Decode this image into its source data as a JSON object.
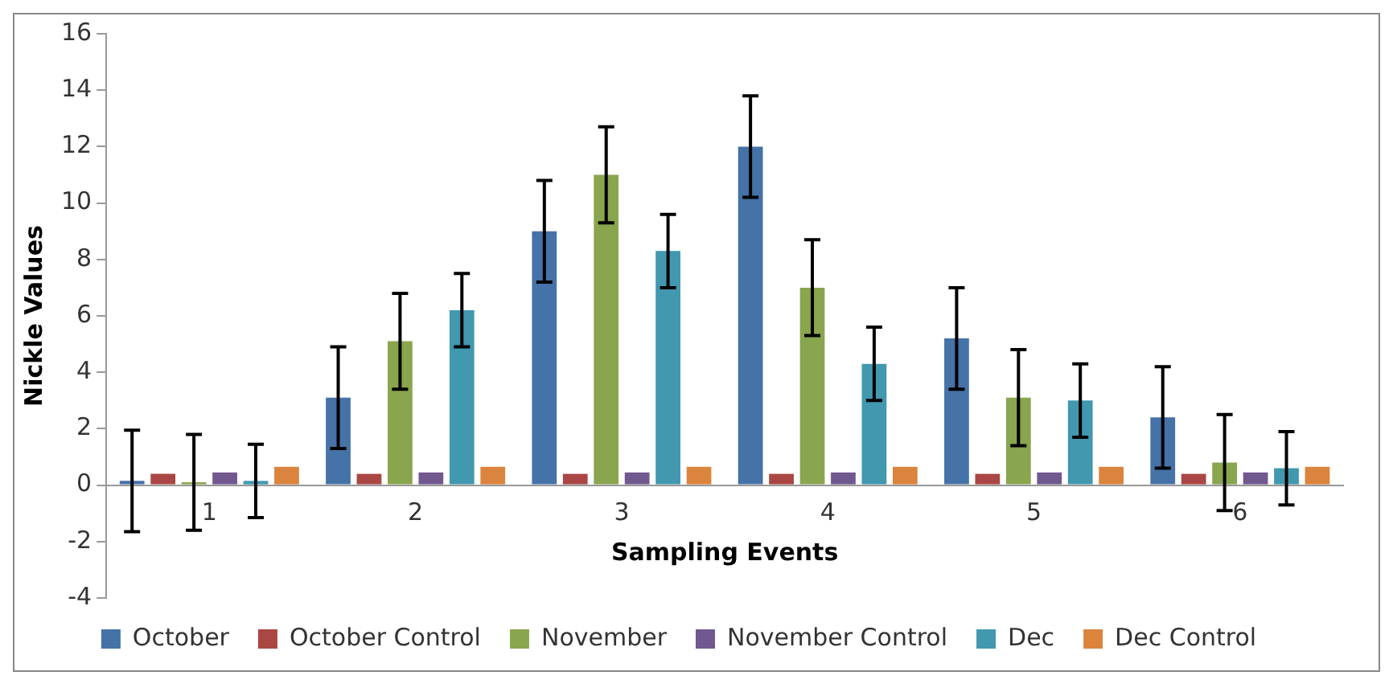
{
  "chart_data": {
    "type": "bar",
    "xlabel": "Sampling Events",
    "ylabel": "Nickle Values",
    "categories": [
      "1",
      "2",
      "3",
      "4",
      "5",
      "6"
    ],
    "series": [
      {
        "name": "October",
        "color": "#4572a7",
        "values": [
          0.15,
          3.1,
          9.0,
          12.0,
          5.2,
          2.4
        ],
        "errors": [
          1.8,
          1.8,
          1.8,
          1.8,
          1.8,
          1.8
        ]
      },
      {
        "name": "October Control",
        "color": "#aa4643",
        "values": [
          0.4,
          0.4,
          0.4,
          0.4,
          0.4,
          0.4
        ]
      },
      {
        "name": "November",
        "color": "#89a54e",
        "values": [
          0.1,
          5.1,
          11.0,
          7.0,
          3.1,
          0.8
        ],
        "errors": [
          1.7,
          1.7,
          1.7,
          1.7,
          1.7,
          1.7
        ]
      },
      {
        "name": "November Control",
        "color": "#71588f",
        "values": [
          0.45,
          0.45,
          0.45,
          0.45,
          0.45,
          0.45
        ]
      },
      {
        "name": "Dec",
        "color": "#4198af",
        "values": [
          0.15,
          6.2,
          8.3,
          4.3,
          3.0,
          0.6
        ],
        "errors": [
          1.3,
          1.3,
          1.3,
          1.3,
          1.3,
          1.3
        ]
      },
      {
        "name": "Dec Control",
        "color": "#db843d",
        "values": [
          0.65,
          0.65,
          0.65,
          0.65,
          0.65,
          0.65
        ]
      }
    ],
    "ylim": [
      -4,
      16
    ],
    "yticks": [
      -4,
      -2,
      0,
      2,
      4,
      6,
      8,
      10,
      12,
      14,
      16
    ],
    "grid": false,
    "legend": "bottom"
  }
}
